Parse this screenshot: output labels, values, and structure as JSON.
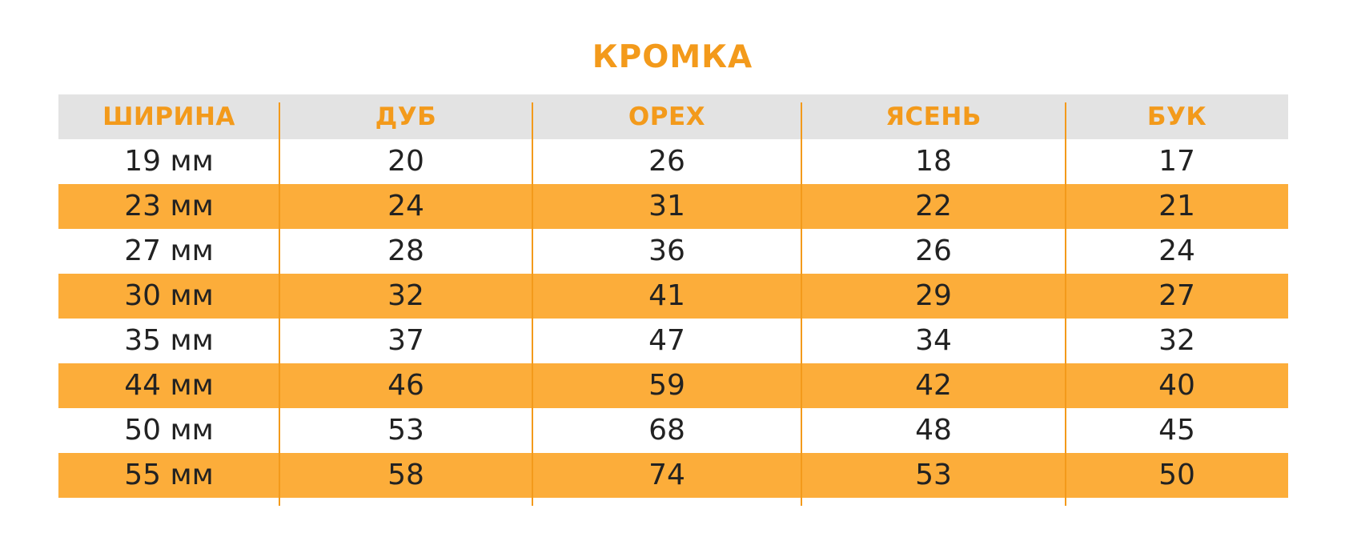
{
  "title": "КРОМКА",
  "columns": [
    "ШИРИНА",
    "ДУБ",
    "ОРЕХ",
    "ЯСЕНЬ",
    "БУК"
  ],
  "rows": [
    [
      "19 мм",
      "20",
      "26",
      "18",
      "17"
    ],
    [
      "23 мм",
      "24",
      "31",
      "22",
      "21"
    ],
    [
      "27 мм",
      "28",
      "36",
      "26",
      "24"
    ],
    [
      "30 мм",
      "32",
      "41",
      "29",
      "27"
    ],
    [
      "35 мм",
      "37",
      "47",
      "34",
      "32"
    ],
    [
      "44 мм",
      "46",
      "59",
      "42",
      "40"
    ],
    [
      "50 мм",
      "53",
      "68",
      "48",
      "45"
    ],
    [
      "55 мм",
      "58",
      "74",
      "53",
      "50"
    ]
  ],
  "colors": {
    "accent": "#f39a1b",
    "header_bg": "#e3e3e3",
    "stripe_bg": "#fcad3a",
    "text": "#222222"
  }
}
